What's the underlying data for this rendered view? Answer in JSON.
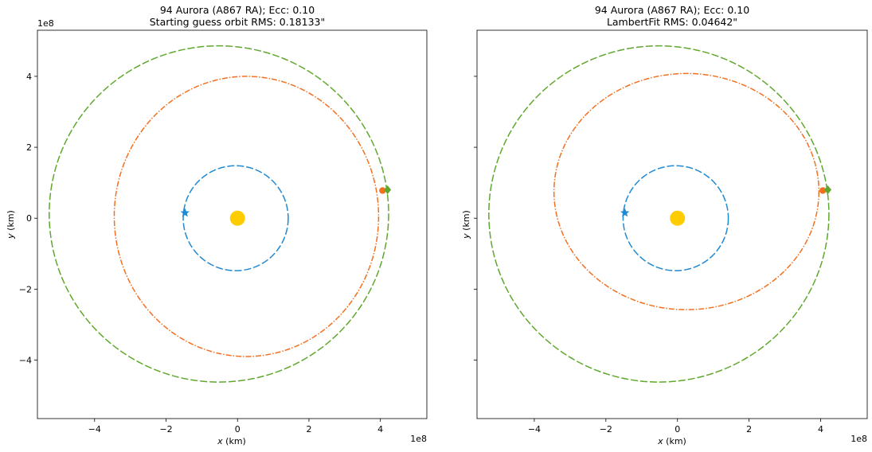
{
  "chart_data": [
    {
      "type": "line",
      "title_line1": "94 Aurora (A867 RA); Ecc: 0.10",
      "title_line2": "Starting guess orbit RMS: 0.18133\"",
      "xlabel_var": "x",
      "xlabel_unit": " (km)",
      "ylabel_var": "y",
      "ylabel_unit": " (km)",
      "x_offset_label": "1e8",
      "y_offset_label": "1e8",
      "show_ytick_labels": true,
      "xlim": [
        -5.6,
        5.3
      ],
      "ylim": [
        -5.65,
        5.3
      ],
      "xticks": [
        -4,
        -2,
        0,
        2,
        4
      ],
      "yticks": [
        -4,
        -2,
        0,
        2,
        4
      ],
      "xtick_labels": [
        "−4",
        "−2",
        "0",
        "2",
        "4"
      ],
      "ytick_labels": [
        "−4",
        "−2",
        "0",
        "2",
        "4"
      ],
      "sun": {
        "x": 0,
        "y": 0,
        "color": "#FFCC00"
      },
      "series": [
        {
          "color": "#1F8AD1",
          "dash": "dashed",
          "ellipse": {
            "cx": -0.05,
            "cy": 0,
            "rx": 1.47,
            "ry": 1.48
          },
          "marker": {
            "x": -1.47,
            "y": 0.15,
            "shape": "star"
          }
        },
        {
          "color": "#F37021",
          "dash": "dashdot",
          "ellipse": {
            "cx": 0.25,
            "cy": 0.05,
            "rx": 3.7,
            "ry": 3.95
          },
          "marker": {
            "x": 4.06,
            "y": 0.78,
            "shape": "circle"
          }
        },
        {
          "color": "#5FA82D",
          "dash": "dashed",
          "ellipse": {
            "cx": -0.52,
            "cy": 0.12,
            "rx": 4.75,
            "ry": 4.74
          },
          "marker": {
            "x": 4.2,
            "y": 0.8,
            "shape": "diamond"
          }
        }
      ]
    },
    {
      "type": "line",
      "title_line1": "94 Aurora (A867 RA); Ecc: 0.10",
      "title_line2": "LambertFit RMS: 0.04642\"",
      "xlabel_var": "x",
      "xlabel_unit": " (km)",
      "ylabel_var": "y",
      "ylabel_unit": " (km)",
      "x_offset_label": "1e8",
      "y_offset_label": "",
      "show_ytick_labels": false,
      "xlim": [
        -5.6,
        5.3
      ],
      "ylim": [
        -5.65,
        5.3
      ],
      "xticks": [
        -4,
        -2,
        0,
        2,
        4
      ],
      "yticks": [
        -4,
        -2,
        0,
        2,
        4
      ],
      "xtick_labels": [
        "−4",
        "−2",
        "0",
        "2",
        "4"
      ],
      "ytick_labels": [
        "",
        "",
        "",
        "",
        ""
      ],
      "sun": {
        "x": 0,
        "y": 0,
        "color": "#FFCC00"
      },
      "series": [
        {
          "color": "#1F8AD1",
          "dash": "dashed",
          "ellipse": {
            "cx": -0.05,
            "cy": 0,
            "rx": 1.47,
            "ry": 1.48
          },
          "marker": {
            "x": -1.47,
            "y": 0.15,
            "shape": "star"
          }
        },
        {
          "color": "#F37021",
          "dash": "dashdot",
          "ellipse": {
            "cx": 0.25,
            "cy": 0.75,
            "rx": 3.7,
            "ry": 3.33
          },
          "marker": {
            "x": 4.06,
            "y": 0.78,
            "shape": "circle"
          }
        },
        {
          "color": "#5FA82D",
          "dash": "dashed",
          "ellipse": {
            "cx": -0.52,
            "cy": 0.12,
            "rx": 4.75,
            "ry": 4.74
          },
          "marker": {
            "x": 4.2,
            "y": 0.8,
            "shape": "diamond"
          }
        }
      ]
    }
  ]
}
